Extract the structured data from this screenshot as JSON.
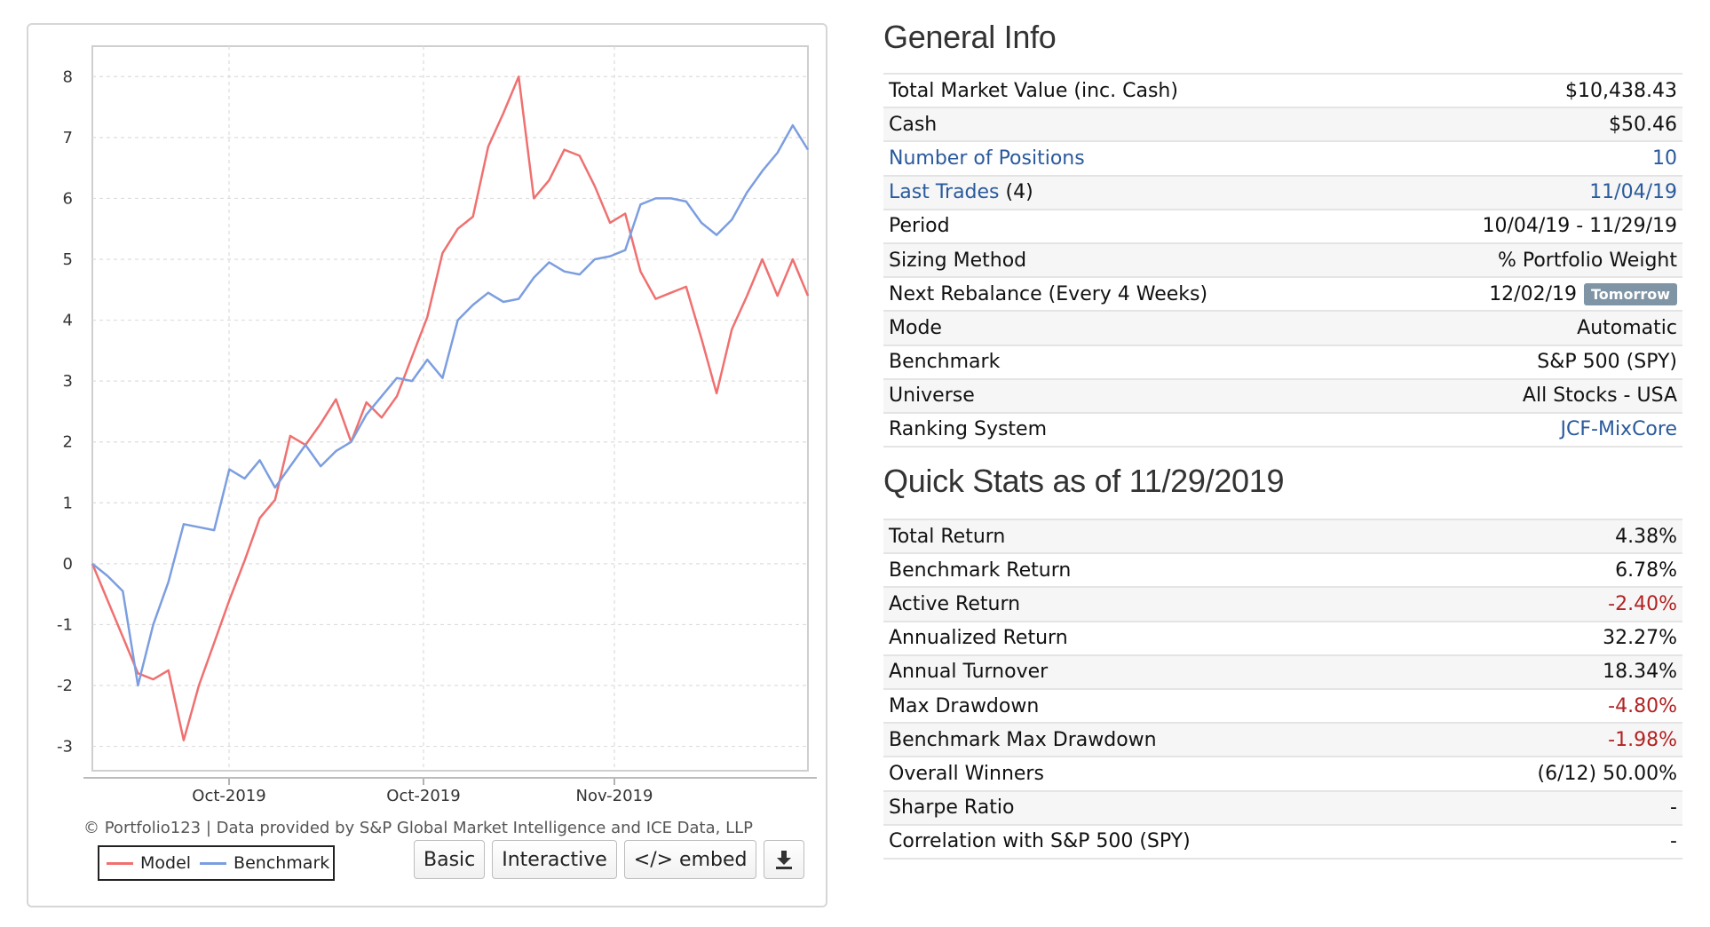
{
  "chart_data": {
    "type": "line",
    "x_ticks": [
      "Oct-2019",
      "Oct-2019",
      "Nov-2019"
    ],
    "y_ticks": [
      "8",
      "7",
      "6",
      "5",
      "4",
      "3",
      "2",
      "1",
      "0",
      "-1",
      "-2",
      "-3"
    ],
    "ylim": [
      -3.4,
      8.5
    ],
    "grid": true,
    "legend_position": "bottom-left",
    "series": [
      {
        "name": "Model",
        "color": "#f07070",
        "values": [
          0,
          -0.6,
          -1.2,
          -1.8,
          -1.9,
          -1.75,
          -2.9,
          -2.0,
          -1.3,
          -0.6,
          0.05,
          0.75,
          1.05,
          2.1,
          1.95,
          2.3,
          2.7,
          2.0,
          2.65,
          2.4,
          2.75,
          3.4,
          4.05,
          5.1,
          5.5,
          5.7,
          6.85,
          7.4,
          8.0,
          6.0,
          6.3,
          6.8,
          6.7,
          6.2,
          5.6,
          5.75,
          4.8,
          4.35,
          4.45,
          4.55,
          3.7,
          2.8,
          3.85,
          4.4,
          5.0,
          4.4,
          5.0,
          4.4
        ]
      },
      {
        "name": "Benchmark",
        "color": "#7c9ee0",
        "values": [
          0,
          -0.2,
          -0.45,
          -2.0,
          -1.0,
          -0.3,
          0.65,
          0.6,
          0.55,
          1.55,
          1.4,
          1.7,
          1.25,
          1.6,
          1.95,
          1.6,
          1.85,
          2.0,
          2.45,
          2.75,
          3.05,
          3.0,
          3.35,
          3.05,
          4.0,
          4.25,
          4.45,
          4.3,
          4.35,
          4.7,
          4.95,
          4.8,
          4.75,
          5.0,
          5.05,
          5.15,
          5.9,
          6.0,
          6.0,
          5.95,
          5.6,
          5.4,
          5.65,
          6.1,
          6.45,
          6.75,
          7.2,
          6.8
        ]
      }
    ]
  },
  "chart": {
    "credit": "© Portfolio123 | Data provided by S&P Global Market Intelligence and ICE Data, LLP",
    "legend": {
      "model": "Model",
      "benchmark": "Benchmark"
    },
    "buttons": {
      "basic": "Basic",
      "interactive": "Interactive",
      "embed": "</> embed",
      "download_icon": "download-icon"
    }
  },
  "general_info": {
    "title": "General Info",
    "rows": [
      {
        "label": "Total Market Value (inc. Cash)",
        "value": "$10,438.43"
      },
      {
        "label": "Cash",
        "value": "$50.46"
      },
      {
        "label": "Number of Positions",
        "value": "10"
      },
      {
        "label": "Last Trades",
        "label_suffix": "(4)",
        "value": "11/04/19"
      },
      {
        "label": "Period",
        "value": "10/04/19 - 11/29/19"
      },
      {
        "label": "Sizing Method",
        "value": "% Portfolio Weight"
      },
      {
        "label": "Next Rebalance (Every 4 Weeks)",
        "value": "12/02/19",
        "badge": "Tomorrow"
      },
      {
        "label": "Mode",
        "value": "Automatic"
      },
      {
        "label": "Benchmark",
        "value": "S&P 500 (SPY)"
      },
      {
        "label": "Universe",
        "value": "All Stocks - USA"
      },
      {
        "label": "Ranking System",
        "value": "JCF-MixCore"
      }
    ]
  },
  "quick_stats": {
    "title": "Quick Stats as of 11/29/2019",
    "rows": [
      {
        "label": "Total Return",
        "value": "4.38%"
      },
      {
        "label": "Benchmark Return",
        "value": "6.78%"
      },
      {
        "label": "Active Return",
        "value": "-2.40%"
      },
      {
        "label": "Annualized Return",
        "value": "32.27%"
      },
      {
        "label": "Annual Turnover",
        "value": "18.34%"
      },
      {
        "label": "Max Drawdown",
        "value": "-4.80%"
      },
      {
        "label": "Benchmark Max Drawdown",
        "value": "-1.98%"
      },
      {
        "label": "Overall Winners",
        "value": "(6/12) 50.00%"
      },
      {
        "label": "Sharpe Ratio",
        "value": "-"
      },
      {
        "label": "Correlation with S&P 500 (SPY)",
        "value": "-"
      }
    ]
  }
}
